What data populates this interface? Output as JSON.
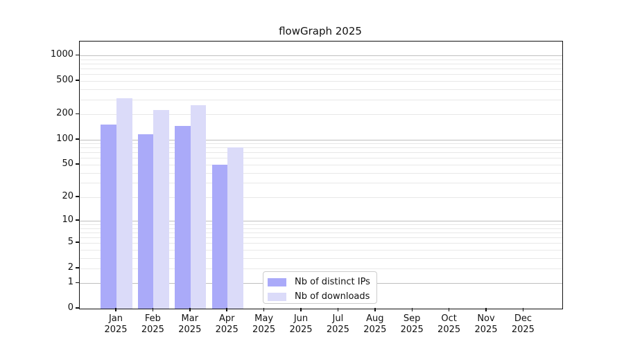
{
  "chart_data": {
    "type": "bar",
    "title": "flowGraph 2025",
    "categories": [
      "Jan",
      "Feb",
      "Mar",
      "Apr",
      "May",
      "Jun",
      "Jul",
      "Aug",
      "Sep",
      "Oct",
      "Nov",
      "Dec"
    ],
    "x_sublabel_year": "2025",
    "series": [
      {
        "name": "Nb of distinct IPs",
        "color": "#aaaaf9",
        "values": [
          152,
          117,
          145,
          50,
          0,
          0,
          0,
          0,
          0,
          0,
          0,
          0
        ]
      },
      {
        "name": "Nb of downloads",
        "color": "#dbdbf9",
        "values": [
          310,
          225,
          260,
          80,
          0,
          0,
          0,
          0,
          0,
          0,
          0,
          0
        ]
      }
    ],
    "yticks": [
      0,
      1,
      2,
      5,
      10,
      20,
      50,
      100,
      200,
      500,
      1000
    ],
    "minor_grid_values": [
      2,
      3,
      4,
      5,
      6,
      7,
      8,
      9,
      20,
      30,
      40,
      50,
      60,
      70,
      80,
      90,
      200,
      300,
      400,
      500,
      600,
      700,
      800,
      900
    ],
    "major_grid_values": [
      1,
      10,
      100,
      1000
    ],
    "scale": "log10(1+y)",
    "ylim": [
      0,
      1470
    ],
    "grid": true,
    "legend_position": "lower center",
    "colors": {
      "axis": "#111111",
      "grid_minor": "#e8e8e8",
      "grid_major": "#bfbfbf",
      "background": "#ffffff"
    }
  }
}
